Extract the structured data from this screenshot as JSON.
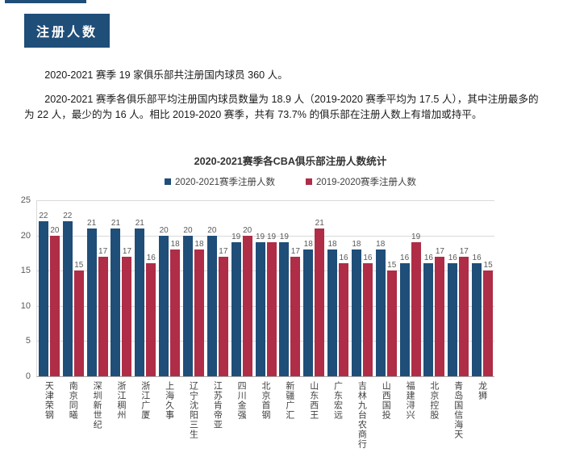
{
  "theme": {
    "accent_color": "#1F4E79"
  },
  "header": {
    "badge_label": "注册人数"
  },
  "paragraphs": [
    "2020-2021 赛季 19 家俱乐部共注册国内球员 360 人。",
    "2020-2021 赛季各俱乐部平均注册国内球员数量为 18.9 人（2019-2020 赛季平均为 17.5 人），其中注册最多的为 22 人，最少的为 16 人。相比 2019-2020 赛季，共有 73.7% 的俱乐部在注册人数上有增加或持平。"
  ],
  "chart_data": {
    "type": "bar",
    "title": "2020-2021赛季各CBA俱乐部注册人数统计",
    "categories": [
      "天津荣钢",
      "南京同曦",
      "深圳新世纪",
      "浙江稠州",
      "浙江广厦",
      "上海久事",
      "辽宁沈阳三生",
      "江苏肯帝亚",
      "四川金强",
      "北京首钢",
      "新疆广汇",
      "山东西王",
      "广东宏远",
      "吉林九台农商行",
      "山西国投",
      "福建浔兴",
      "北京控股",
      "青岛国信海天",
      "龙狮"
    ],
    "series": [
      {
        "name": "2020-2021赛季注册人数",
        "color": "#1F4E79",
        "values": [
          22,
          22,
          21,
          21,
          21,
          20,
          20,
          20,
          19,
          19,
          19,
          18,
          18,
          18,
          18,
          16,
          16,
          16,
          16
        ]
      },
      {
        "name": "2019-2020赛季注册人数",
        "color": "#AF2D46",
        "values": [
          20,
          15,
          17,
          17,
          16,
          18,
          18,
          17,
          20,
          19,
          17,
          21,
          16,
          16,
          15,
          19,
          17,
          17,
          15
        ]
      }
    ],
    "ylim": [
      0,
      25
    ],
    "yticks": [
      0,
      5,
      10,
      15,
      20,
      25
    ],
    "grid": true,
    "legend_position": "top",
    "value_labels": true
  }
}
